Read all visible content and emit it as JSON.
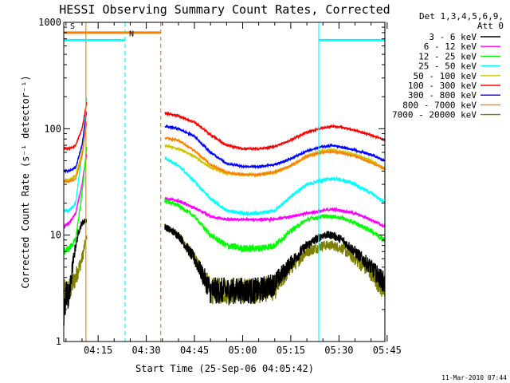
{
  "chart_data": {
    "type": "line",
    "title": "HESSI Observing Summary Count Rates, Corrected",
    "xlabel": "Start Time (25-Sep-06 04:05:42)",
    "ylabel": "Corrected Count Rate (s⁻¹ detector⁻¹)",
    "yscale": "log",
    "ylim": [
      1,
      1000
    ],
    "xlim_minutes": [
      4.3,
      104.3
    ],
    "x_ticks": [
      "04:15",
      "04:30",
      "04:45",
      "05:00",
      "05:15",
      "05:30",
      "05:45"
    ],
    "x_tick_minutes": [
      15,
      30,
      45,
      60,
      75,
      90,
      105
    ],
    "y_tick_labels": [
      "1",
      "10",
      "100",
      "1000"
    ],
    "y_tick_values": [
      1,
      10,
      100,
      1000
    ],
    "legend_header": [
      "Det 1,3,4,5,6,9,",
      "Att 0"
    ],
    "footer_date": "11-Mar-2010 07:44",
    "flags": [
      {
        "label": "S",
        "color": "#ff8000",
        "start": 4.3,
        "end": 34.5,
        "level": 800,
        "marker_minute": 11.2
      },
      {
        "label": "N",
        "color": "#00ffff",
        "start": 4.3,
        "end": 23.4,
        "level": 680,
        "marker_minute": 23.4
      },
      {
        "label": "",
        "color": "#00ffff",
        "start": 83.7,
        "end": 104.3,
        "level": 680
      }
    ],
    "vertical_lines": [
      {
        "minute": 11.2,
        "color": "#ff8000",
        "style": "solid"
      },
      {
        "minute": 23.4,
        "color": "#00ffff",
        "style": "dashed"
      },
      {
        "minute": 34.5,
        "color": "#ff8000",
        "style": "dashed"
      },
      {
        "minute": 83.7,
        "color": "#00ffff",
        "style": "solid"
      },
      {
        "minute": 104.3,
        "color": "#00ffff",
        "style": "dashed"
      }
    ],
    "segments": [
      [
        4.3,
        11.5
      ],
      [
        35.8,
        104.3
      ]
    ],
    "series": [
      {
        "name": "3 - 6 keV",
        "color": "#000000",
        "noise": 0.9,
        "points": [
          [
            4.3,
            1.5
          ],
          [
            5,
            3
          ],
          [
            6,
            2.5
          ],
          [
            7,
            5
          ],
          [
            8,
            8
          ],
          [
            9,
            11
          ],
          [
            10,
            13
          ],
          [
            11.5,
            14
          ],
          [
            35.8,
            12
          ],
          [
            40,
            10
          ],
          [
            45,
            6
          ],
          [
            48,
            4
          ],
          [
            50,
            3
          ],
          [
            55,
            3
          ],
          [
            60,
            3
          ],
          [
            65,
            3
          ],
          [
            70,
            3.5
          ],
          [
            75,
            5.5
          ],
          [
            80,
            8
          ],
          [
            85,
            10
          ],
          [
            88,
            10
          ],
          [
            91,
            9
          ],
          [
            95,
            7
          ],
          [
            100,
            5
          ],
          [
            104.3,
            3.5
          ]
        ]
      },
      {
        "name": "6 - 12 keV",
        "color": "#ff00ff",
        "noise": 0.4,
        "points": [
          [
            4.3,
            12
          ],
          [
            6,
            13
          ],
          [
            8,
            16
          ],
          [
            10,
            30
          ],
          [
            11.5,
            60
          ],
          [
            35.8,
            22
          ],
          [
            40,
            21
          ],
          [
            45,
            18
          ],
          [
            50,
            15
          ],
          [
            55,
            14
          ],
          [
            60,
            14
          ],
          [
            65,
            14
          ],
          [
            70,
            14
          ],
          [
            75,
            15
          ],
          [
            80,
            16
          ],
          [
            85,
            17
          ],
          [
            88,
            17.5
          ],
          [
            91,
            17
          ],
          [
            95,
            16
          ],
          [
            100,
            14
          ],
          [
            104.3,
            12
          ]
        ]
      },
      {
        "name": "12 - 25 keV",
        "color": "#00ff00",
        "noise": 0.6,
        "points": [
          [
            4.3,
            7
          ],
          [
            6,
            7.5
          ],
          [
            8,
            9
          ],
          [
            10,
            25
          ],
          [
            11.5,
            70
          ],
          [
            35.8,
            21
          ],
          [
            40,
            19
          ],
          [
            45,
            15
          ],
          [
            50,
            10
          ],
          [
            55,
            8
          ],
          [
            60,
            7.5
          ],
          [
            65,
            7.5
          ],
          [
            70,
            8
          ],
          [
            75,
            11
          ],
          [
            80,
            14
          ],
          [
            85,
            15
          ],
          [
            88,
            15
          ],
          [
            91,
            14.5
          ],
          [
            95,
            13
          ],
          [
            100,
            11
          ],
          [
            104.3,
            9
          ]
        ]
      },
      {
        "name": "25 - 50 keV",
        "color": "#00ffff",
        "noise": 0.5,
        "points": [
          [
            4.3,
            17
          ],
          [
            6,
            17
          ],
          [
            8,
            20
          ],
          [
            10,
            60
          ],
          [
            11.5,
            200
          ],
          [
            35.8,
            53
          ],
          [
            40,
            45
          ],
          [
            45,
            32
          ],
          [
            50,
            22
          ],
          [
            55,
            17
          ],
          [
            60,
            16
          ],
          [
            65,
            16
          ],
          [
            70,
            17
          ],
          [
            75,
            23
          ],
          [
            80,
            30
          ],
          [
            85,
            33
          ],
          [
            88,
            34
          ],
          [
            91,
            33
          ],
          [
            95,
            30
          ],
          [
            100,
            25
          ],
          [
            104.3,
            20
          ]
        ]
      },
      {
        "name": "50 - 100 keV",
        "color": "#c8c800",
        "noise": 0.35,
        "points": [
          [
            4.3,
            33
          ],
          [
            6,
            33
          ],
          [
            8,
            36
          ],
          [
            10,
            60
          ],
          [
            11.5,
            120
          ],
          [
            35.8,
            70
          ],
          [
            40,
            65
          ],
          [
            45,
            55
          ],
          [
            50,
            43
          ],
          [
            55,
            38
          ],
          [
            60,
            37
          ],
          [
            65,
            37
          ],
          [
            70,
            39
          ],
          [
            75,
            45
          ],
          [
            80,
            55
          ],
          [
            85,
            62
          ],
          [
            88,
            63
          ],
          [
            91,
            61
          ],
          [
            95,
            57
          ],
          [
            100,
            50
          ],
          [
            104.3,
            42
          ]
        ]
      },
      {
        "name": "100 - 300 keV",
        "color": "#ff0000",
        "noise": 0.3,
        "points": [
          [
            4.3,
            65
          ],
          [
            6,
            65
          ],
          [
            8,
            70
          ],
          [
            10,
            100
          ],
          [
            11.5,
            180
          ],
          [
            35.8,
            140
          ],
          [
            40,
            132
          ],
          [
            45,
            115
          ],
          [
            50,
            88
          ],
          [
            55,
            70
          ],
          [
            60,
            65
          ],
          [
            65,
            65
          ],
          [
            70,
            68
          ],
          [
            75,
            78
          ],
          [
            80,
            93
          ],
          [
            85,
            102
          ],
          [
            88,
            105
          ],
          [
            91,
            103
          ],
          [
            95,
            97
          ],
          [
            100,
            87
          ],
          [
            104.3,
            78
          ]
        ]
      },
      {
        "name": "300 - 800 keV",
        "color": "#0000ff",
        "noise": 0.3,
        "points": [
          [
            4.3,
            40
          ],
          [
            6,
            40
          ],
          [
            8,
            43
          ],
          [
            10,
            70
          ],
          [
            11.5,
            150
          ],
          [
            35.8,
            105
          ],
          [
            40,
            100
          ],
          [
            45,
            85
          ],
          [
            50,
            60
          ],
          [
            55,
            47
          ],
          [
            60,
            44
          ],
          [
            65,
            44
          ],
          [
            70,
            46
          ],
          [
            75,
            52
          ],
          [
            80,
            62
          ],
          [
            85,
            68
          ],
          [
            88,
            70
          ],
          [
            91,
            67
          ],
          [
            95,
            63
          ],
          [
            100,
            57
          ],
          [
            104.3,
            50
          ]
        ]
      },
      {
        "name": "800 - 7000 keV",
        "color": "#ff8000",
        "noise": 0.3,
        "points": [
          [
            4.3,
            32
          ],
          [
            6,
            32
          ],
          [
            8,
            34
          ],
          [
            10,
            55
          ],
          [
            11.5,
            120
          ],
          [
            35.8,
            82
          ],
          [
            40,
            78
          ],
          [
            45,
            62
          ],
          [
            50,
            46
          ],
          [
            55,
            39
          ],
          [
            60,
            37
          ],
          [
            65,
            37
          ],
          [
            70,
            39
          ],
          [
            75,
            45
          ],
          [
            80,
            55
          ],
          [
            85,
            60
          ],
          [
            88,
            61
          ],
          [
            91,
            59
          ],
          [
            95,
            55
          ],
          [
            100,
            48
          ],
          [
            104.3,
            42
          ]
        ]
      },
      {
        "name": "7000 - 20000 keV",
        "color": "#808000",
        "noise": 0.9,
        "points": [
          [
            4.3,
            2.8
          ],
          [
            6,
            3
          ],
          [
            8,
            4
          ],
          [
            10,
            6
          ],
          [
            11.5,
            10
          ],
          [
            35.8,
            12
          ],
          [
            40,
            10
          ],
          [
            45,
            6
          ],
          [
            48,
            4
          ],
          [
            50,
            3
          ],
          [
            55,
            3
          ],
          [
            60,
            3
          ],
          [
            65,
            3
          ],
          [
            70,
            3.2
          ],
          [
            75,
            5
          ],
          [
            80,
            7
          ],
          [
            85,
            8
          ],
          [
            88,
            8
          ],
          [
            91,
            7.5
          ],
          [
            95,
            6
          ],
          [
            100,
            4.5
          ],
          [
            104.3,
            3
          ]
        ]
      }
    ]
  }
}
